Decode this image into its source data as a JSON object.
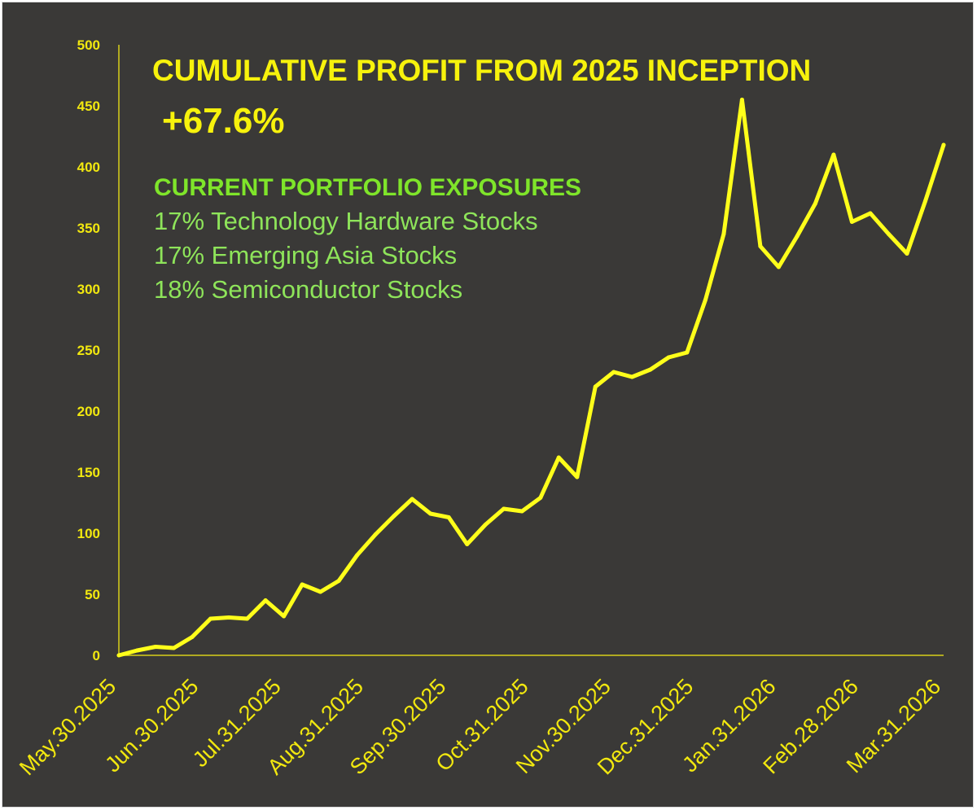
{
  "chart_data": {
    "type": "line",
    "title": "CUMULATIVE PROFIT FROM 2025 INCEPTION",
    "subtitle": "+67.6%",
    "annotations": {
      "heading": "CURRENT PORTFOLIO EXPOSURES",
      "items": [
        "17% Technology Hardware Stocks",
        "17% Emerging Asia Stocks",
        "18% Semiconductor Stocks"
      ]
    },
    "ylim": [
      0,
      500
    ],
    "yticks": [
      "0",
      "50",
      "100",
      "150",
      "200",
      "250",
      "300",
      "350",
      "400",
      "450",
      "500"
    ],
    "xticks": [
      "May.30.2025",
      "Jun.30.2025",
      "Jul.31.2025",
      "Aug.31.2025",
      "Sep.30.2025",
      "Oct.31.2025",
      "Nov.30.2025",
      "Dec.31.2025",
      "Jan.31.2026",
      "Feb.28.2026",
      "Mar.31.2026"
    ],
    "grid": false,
    "line_color": "#ffff1a",
    "series": [
      {
        "values": [
          0,
          4,
          7,
          6,
          15,
          30,
          31,
          30,
          45,
          32,
          58,
          52,
          61,
          82,
          99,
          114,
          128,
          116,
          113,
          91,
          107,
          120,
          118,
          129,
          162,
          146,
          220,
          232,
          228,
          234,
          244,
          248,
          291,
          345,
          455,
          335,
          318,
          343,
          370,
          410,
          355,
          362,
          345,
          329,
          372,
          418
        ]
      }
    ]
  }
}
